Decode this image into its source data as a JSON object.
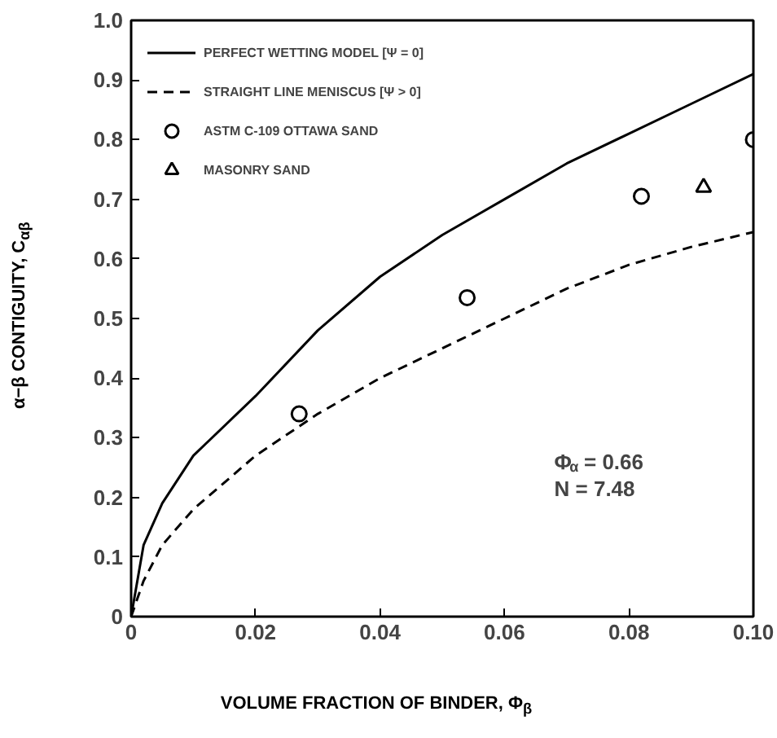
{
  "chart_data": {
    "type": "line",
    "xlabel": "VOLUME FRACTION OF BINDER, Φ$_{β}$",
    "ylabel": "α−β   CONTIGUITY, C$_{αβ}$",
    "xlim": [
      0,
      0.1
    ],
    "ylim": [
      0,
      1.0
    ],
    "xticks": [
      0,
      {
        "value": 0.02,
        "label": "0.02"
      },
      {
        "value": 0.04,
        "label": "0.04"
      },
      {
        "value": 0.06,
        "label": "0.06"
      },
      {
        "value": 0.08,
        "label": "0.08"
      },
      {
        "value": 0.1,
        "label": "0.10"
      }
    ],
    "yticks": [
      0,
      0.1,
      0.2,
      0.3,
      0.4,
      0.5,
      0.6,
      0.7,
      0.8,
      0.9,
      {
        "value": 1.0,
        "label": "1.0"
      }
    ],
    "grid": false,
    "legend": "top left",
    "series": [
      {
        "name": "PERFECT WETTING MODEL [Ψ = 0]",
        "type": "line",
        "line_style": "solid",
        "color": "#000000",
        "x": [
          0,
          0.002,
          0.005,
          0.01,
          0.02,
          0.03,
          0.04,
          0.05,
          0.06,
          0.07,
          0.08,
          0.09,
          0.1
        ],
        "values": [
          0,
          0.12,
          0.19,
          0.27,
          0.37,
          0.48,
          0.57,
          0.64,
          0.7,
          0.76,
          0.81,
          0.86,
          0.91
        ]
      },
      {
        "name": "STRAIGHT LINE MENISCUS [Ψ > 0]",
        "type": "line",
        "line_style": "dashed",
        "color": "#000000",
        "x": [
          0,
          0.002,
          0.005,
          0.01,
          0.02,
          0.03,
          0.04,
          0.05,
          0.06,
          0.07,
          0.08,
          0.09,
          0.1
        ],
        "values": [
          0,
          0.06,
          0.12,
          0.18,
          0.27,
          0.34,
          0.4,
          0.45,
          0.5,
          0.55,
          0.59,
          0.62,
          0.645
        ]
      },
      {
        "name": "ASTM C-109 OTTAWA SAND",
        "type": "scatter",
        "marker": "circle",
        "color": "#000000",
        "x": [
          0.027,
          0.054,
          0.082,
          0.1
        ],
        "values": [
          0.34,
          0.535,
          0.705,
          0.8
        ]
      },
      {
        "name": "MASONRY SAND",
        "type": "scatter",
        "marker": "triangle",
        "color": "#000000",
        "x": [
          0.092
        ],
        "values": [
          0.72
        ]
      }
    ],
    "annotations": [
      {
        "text": "Φ$_{α}$ = 0.66"
      },
      {
        "text": "N = 7.48"
      }
    ]
  }
}
